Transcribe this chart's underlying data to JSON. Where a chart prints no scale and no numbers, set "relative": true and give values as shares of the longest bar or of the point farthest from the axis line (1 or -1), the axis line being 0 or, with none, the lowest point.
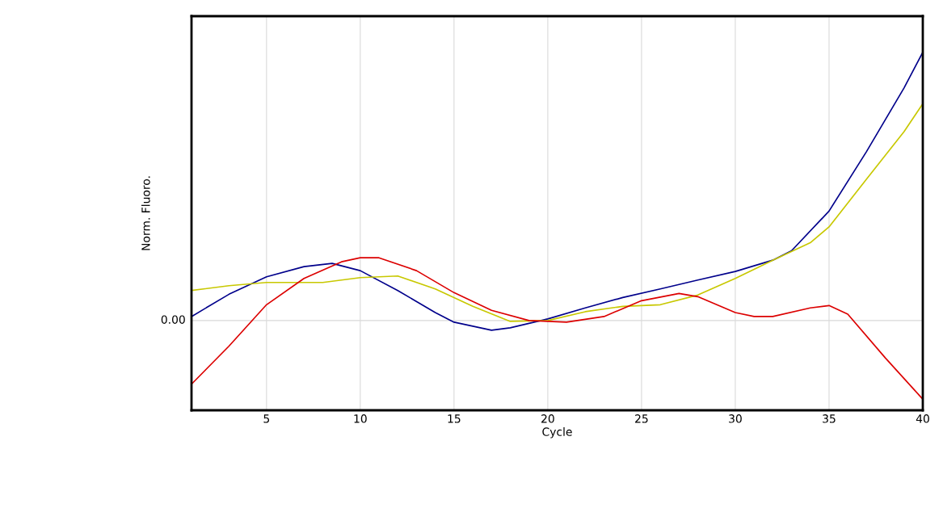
{
  "chart_data": {
    "type": "line",
    "xlabel": "Cycle",
    "ylabel": "Norm. Fluoro.",
    "relative": true,
    "xlim": [
      1,
      40
    ],
    "xticks": [
      5,
      10,
      15,
      20,
      25,
      30,
      35,
      40
    ],
    "grid": "x",
    "legend": false,
    "marker": "none",
    "line_style": "solid",
    "ref_lines": [
      {
        "axis": "y",
        "value": 0,
        "label": "0.00",
        "color": "#d9d9d9"
      }
    ],
    "series": [
      {
        "color": "#00008b",
        "x": [
          1,
          3,
          5,
          7,
          8.5,
          10,
          12,
          14,
          15,
          17,
          18,
          20,
          22,
          24,
          26,
          28,
          30,
          32,
          33,
          35,
          37,
          39,
          40
        ],
        "values": [
          0.015,
          0.098,
          0.163,
          0.201,
          0.213,
          0.186,
          0.112,
          0.03,
          -0.006,
          -0.036,
          -0.027,
          0.006,
          0.047,
          0.086,
          0.118,
          0.151,
          0.183,
          0.225,
          0.26,
          0.408,
          0.63,
          0.867,
          1.0
        ]
      },
      {
        "color": "#c8c800",
        "x": [
          1,
          3,
          5,
          8,
          10,
          12,
          14,
          16,
          18,
          20,
          22,
          24,
          26,
          28,
          30,
          32,
          34,
          35,
          37,
          39,
          40
        ],
        "values": [
          0.112,
          0.13,
          0.142,
          0.142,
          0.16,
          0.166,
          0.118,
          0.053,
          -0.003,
          0.0,
          0.033,
          0.053,
          0.059,
          0.095,
          0.157,
          0.225,
          0.29,
          0.349,
          0.527,
          0.704,
          0.808
        ]
      },
      {
        "color": "#dc0000",
        "x": [
          1,
          3,
          5,
          7,
          9,
          10,
          11,
          13,
          15,
          17,
          19,
          21,
          23,
          25,
          27,
          28,
          30,
          31,
          32,
          34,
          35,
          36,
          38,
          40
        ],
        "values": [
          -0.237,
          -0.095,
          0.059,
          0.157,
          0.219,
          0.234,
          0.234,
          0.186,
          0.104,
          0.038,
          0.0,
          -0.006,
          0.015,
          0.074,
          0.101,
          0.089,
          0.03,
          0.015,
          0.015,
          0.047,
          0.056,
          0.024,
          -0.139,
          -0.293
        ]
      }
    ]
  }
}
